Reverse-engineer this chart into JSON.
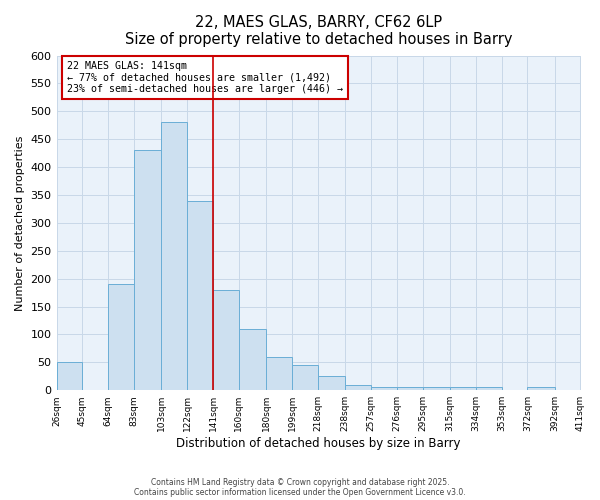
{
  "title": "22, MAES GLAS, BARRY, CF62 6LP",
  "subtitle": "Size of property relative to detached houses in Barry",
  "xlabel": "Distribution of detached houses by size in Barry",
  "ylabel": "Number of detached properties",
  "bin_edges": [
    26,
    45,
    64,
    83,
    103,
    122,
    141,
    160,
    180,
    199,
    218,
    238,
    257,
    276,
    295,
    315,
    334,
    353,
    372,
    392,
    411
  ],
  "bar_heights": [
    50,
    0,
    190,
    430,
    480,
    340,
    180,
    110,
    60,
    45,
    25,
    10,
    5,
    5,
    5,
    5,
    5,
    0,
    5,
    0
  ],
  "bar_facecolor": "#cde0f0",
  "bar_edgecolor": "#6aaed6",
  "vline_x": 141,
  "vline_color": "#cc0000",
  "annotation_title": "22 MAES GLAS: 141sqm",
  "annotation_line1": "← 77% of detached houses are smaller (1,492)",
  "annotation_line2": "23% of semi-detached houses are larger (446) →",
  "annotation_box_edgecolor": "#cc0000",
  "ylim": [
    0,
    600
  ],
  "yticks": [
    0,
    50,
    100,
    150,
    200,
    250,
    300,
    350,
    400,
    450,
    500,
    550,
    600
  ],
  "tick_labels": [
    "26sqm",
    "45sqm",
    "64sqm",
    "83sqm",
    "103sqm",
    "122sqm",
    "141sqm",
    "160sqm",
    "180sqm",
    "199sqm",
    "218sqm",
    "238sqm",
    "257sqm",
    "276sqm",
    "295sqm",
    "315sqm",
    "334sqm",
    "353sqm",
    "372sqm",
    "392sqm",
    "411sqm"
  ],
  "grid_color": "#c8d8e8",
  "bg_color": "#eaf2fa",
  "footer1": "Contains HM Land Registry data © Crown copyright and database right 2025.",
  "footer2": "Contains public sector information licensed under the Open Government Licence v3.0."
}
